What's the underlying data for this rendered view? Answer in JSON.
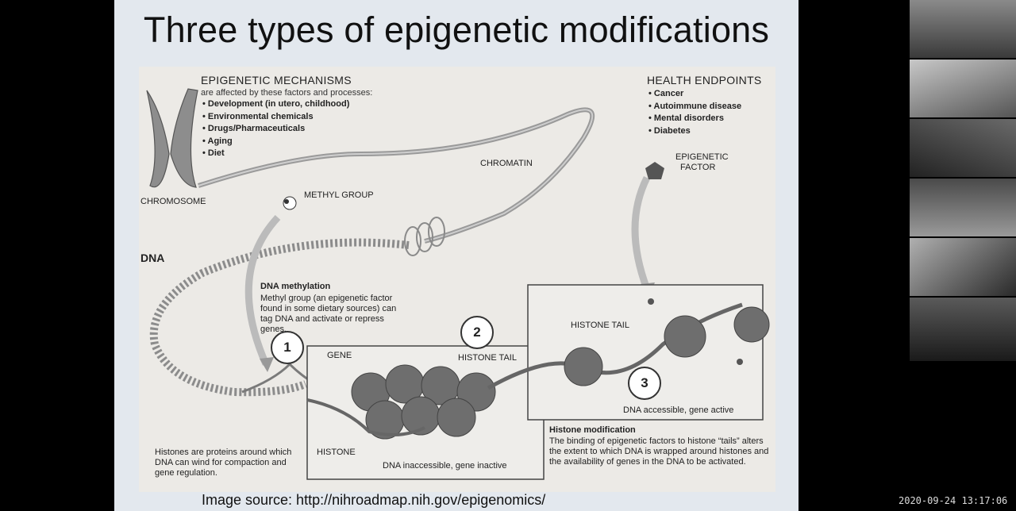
{
  "slide": {
    "title": "Three types of epigenetic modifications",
    "image_source": "Image source: http://nihroadmap.nih.gov/epigenomics/"
  },
  "figure": {
    "mechanisms": {
      "heading": "EPIGENETIC MECHANISMS",
      "subheading": "are affected by these factors and processes:",
      "items": [
        "Development (in utero, childhood)",
        "Environmental chemicals",
        "Drugs/Pharmaceuticals",
        "Aging",
        "Diet"
      ]
    },
    "health": {
      "heading": "HEALTH ENDPOINTS",
      "items": [
        "Cancer",
        "Autoimmune disease",
        "Mental disorders",
        "Diabetes"
      ]
    },
    "labels": {
      "chromosome": "CHROMOSOME",
      "chromatin": "CHROMATIN",
      "methyl_group": "METHYL GROUP",
      "dna": "DNA",
      "epigenetic_factor_line1": "EPIGENETIC",
      "epigenetic_factor_line2": "FACTOR",
      "gene": "GENE",
      "histone": "HISTONE",
      "histone_tail_2": "HISTONE TAIL",
      "histone_tail_3": "HISTONE TAIL",
      "dna_inaccessible": "DNA inaccessible, gene inactive",
      "dna_accessible": "DNA accessible, gene active"
    },
    "methylation": {
      "title": "DNA methylation",
      "text": "Methyl group (an epigenetic factor found in some dietary sources) can tag DNA and activate or repress genes."
    },
    "histones_note": "Histones are proteins around which DNA can wind for compaction and gene regulation.",
    "histone_mod": {
      "title": "Histone modification",
      "text": "The binding of epigenetic factors to histone “tails” alters the extent to which DNA is wrapped around histones and the availability of genes in the DNA to be activated."
    },
    "numbers": [
      "1",
      "2",
      "3"
    ]
  },
  "overlay": {
    "timestamp": "2020-09-24 13:17:06"
  }
}
